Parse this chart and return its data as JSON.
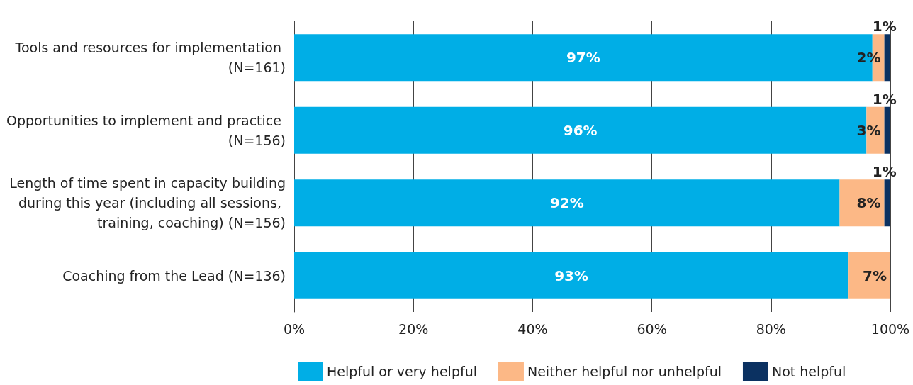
{
  "chart_data": {
    "type": "bar",
    "orientation": "horizontal",
    "stacked": true,
    "categories": [
      "Tools and resources for implementation (N=161)",
      "Opportunities to implement and practice (N=156)",
      "Length of time spent in capacity building during this year (including all sessions, training, coaching) (N=156)",
      "Coaching from the Lead (N=136)"
    ],
    "series": [
      {
        "name": "Helpful or very helpful",
        "color": "#00aee6",
        "values": [
          97,
          96,
          91.5,
          93
        ],
        "value_labels": [
          "97%",
          "96%",
          "92%",
          "93%"
        ]
      },
      {
        "name": "Neither helpful nor unhelpful",
        "color": "#fcb886",
        "values": [
          2,
          3,
          7.5,
          7
        ],
        "value_labels": [
          "2%",
          "3%",
          "8%",
          "7%"
        ]
      },
      {
        "name": "Not helpful",
        "color": "#0b3161",
        "values": [
          1,
          1,
          1,
          null
        ],
        "value_labels": [
          "1%",
          "1%",
          "1%",
          null
        ]
      }
    ],
    "xlim": [
      0,
      100
    ],
    "xticks": [
      {
        "value": 0,
        "label": "0%"
      },
      {
        "value": 20,
        "label": "20%"
      },
      {
        "value": 40,
        "label": "40%"
      },
      {
        "value": 60,
        "label": "60%"
      },
      {
        "value": 80,
        "label": "80%"
      },
      {
        "value": 100,
        "label": "100%"
      }
    ],
    "grid": "x",
    "legend": "bottom"
  }
}
